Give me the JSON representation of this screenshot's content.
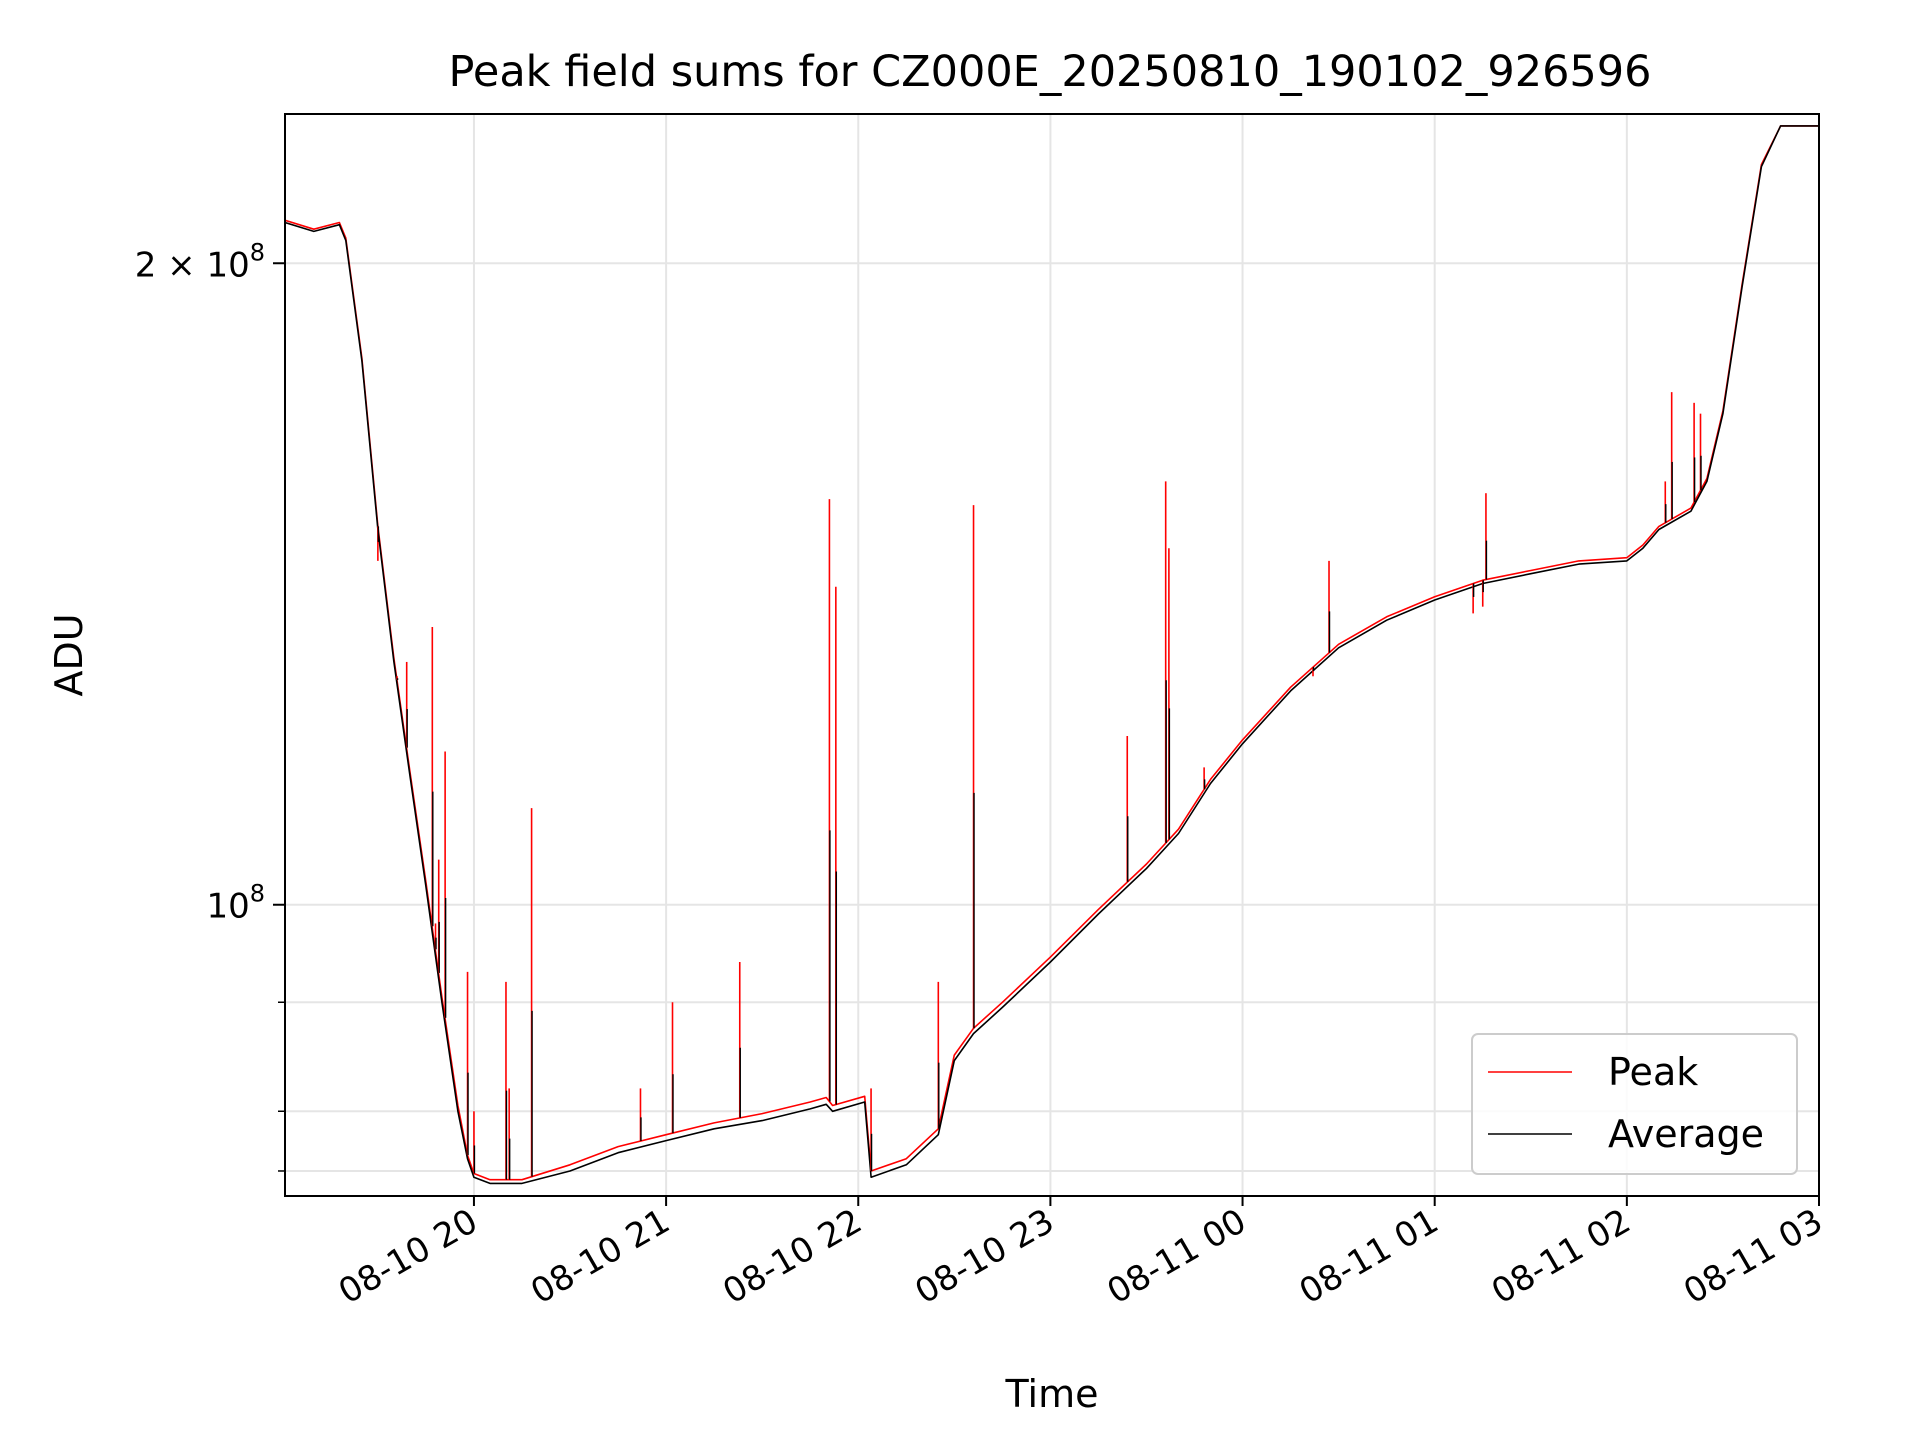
{
  "chart_data": {
    "type": "line",
    "title": "Peak field sums for CZ000E_20250810_190102_926596",
    "xlabel": "Time",
    "ylabel": "ADU",
    "y_scale": "log",
    "xlim": [
      "2025-08-10 19:01",
      "2025-08-11 03:00"
    ],
    "ylim": [
      73000000,
      235000000
    ],
    "x_ticks": [
      "08-10 20",
      "08-10 21",
      "08-10 22",
      "08-10 23",
      "08-11 00",
      "08-11 01",
      "08-11 02",
      "08-11 03"
    ],
    "x_tick_times": [
      "2025-08-10 20:00",
      "2025-08-10 21:00",
      "2025-08-10 22:00",
      "2025-08-10 23:00",
      "2025-08-11 00:00",
      "2025-08-11 01:00",
      "2025-08-11 02:00",
      "2025-08-11 03:00"
    ],
    "y_ticks_major": [
      {
        "value": 100000000,
        "base": "10",
        "exp": "8",
        "coef": ""
      },
      {
        "value": 200000000,
        "base": "10",
        "exp": "8",
        "coef": "2"
      }
    ],
    "y_ticks_minor": [
      75000000,
      80000000,
      90000000
    ],
    "grid": true,
    "legend": "lower-right",
    "colors": {
      "peak": "#ff0000",
      "average": "#000000",
      "grid": "#e5e5e5"
    },
    "series": [
      {
        "name": "Average",
        "color": "#000000",
        "points": [
          [
            "2025-08-10 19:01",
            209000000
          ],
          [
            "2025-08-10 19:10",
            207000000
          ],
          [
            "2025-08-10 19:18",
            208500000
          ],
          [
            "2025-08-10 19:20",
            205000000
          ],
          [
            "2025-08-10 19:25",
            180000000
          ],
          [
            "2025-08-10 19:30",
            150000000
          ],
          [
            "2025-08-10 19:35",
            130000000
          ],
          [
            "2025-08-10 19:40",
            115000000
          ],
          [
            "2025-08-10 19:45",
            102000000
          ],
          [
            "2025-08-10 19:50",
            90000000
          ],
          [
            "2025-08-10 19:55",
            80000000
          ],
          [
            "2025-08-10 19:58",
            76000000
          ],
          [
            "2025-08-10 20:00",
            74500000
          ],
          [
            "2025-08-10 20:05",
            74000000
          ],
          [
            "2025-08-10 20:15",
            74000000
          ],
          [
            "2025-08-10 20:30",
            75000000
          ],
          [
            "2025-08-10 20:45",
            76500000
          ],
          [
            "2025-08-10 21:00",
            77500000
          ],
          [
            "2025-08-10 21:15",
            78500000
          ],
          [
            "2025-08-10 21:30",
            79200000
          ],
          [
            "2025-08-10 21:45",
            80200000
          ],
          [
            "2025-08-10 21:50",
            80600000
          ],
          [
            "2025-08-10 21:52",
            80000000
          ],
          [
            "2025-08-10 22:02",
            80800000
          ],
          [
            "2025-08-10 22:04",
            74500000
          ],
          [
            "2025-08-10 22:15",
            75500000
          ],
          [
            "2025-08-10 22:25",
            78000000
          ],
          [
            "2025-08-10 22:30",
            84500000
          ],
          [
            "2025-08-10 22:36",
            87000000
          ],
          [
            "2025-08-10 22:45",
            89500000
          ],
          [
            "2025-08-10 23:00",
            94000000
          ],
          [
            "2025-08-10 23:15",
            99000000
          ],
          [
            "2025-08-10 23:30",
            104000000
          ],
          [
            "2025-08-10 23:40",
            108000000
          ],
          [
            "2025-08-10 23:50",
            114000000
          ],
          [
            "2025-08-11 00:00",
            119000000
          ],
          [
            "2025-08-11 00:15",
            126000000
          ],
          [
            "2025-08-11 00:30",
            132000000
          ],
          [
            "2025-08-11 00:45",
            136000000
          ],
          [
            "2025-08-11 01:00",
            139000000
          ],
          [
            "2025-08-11 01:15",
            141500000
          ],
          [
            "2025-08-11 01:30",
            143000000
          ],
          [
            "2025-08-11 01:45",
            144500000
          ],
          [
            "2025-08-11 02:00",
            145000000
          ],
          [
            "2025-08-11 02:05",
            147000000
          ],
          [
            "2025-08-11 02:10",
            150000000
          ],
          [
            "2025-08-11 02:20",
            153000000
          ],
          [
            "2025-08-11 02:25",
            158000000
          ],
          [
            "2025-08-11 02:30",
            170000000
          ],
          [
            "2025-08-11 02:36",
            195000000
          ],
          [
            "2025-08-11 02:42",
            222000000
          ],
          [
            "2025-08-11 02:48",
            232000000
          ],
          [
            "2025-08-11 03:00",
            232000000
          ]
        ],
        "spikes": []
      },
      {
        "name": "Peak",
        "color": "#ff0000",
        "points": [
          [
            "2025-08-10 19:01",
            209500000
          ],
          [
            "2025-08-10 19:10",
            207500000
          ],
          [
            "2025-08-10 19:18",
            209000000
          ],
          [
            "2025-08-10 19:20",
            205500000
          ],
          [
            "2025-08-10 19:25",
            180500000
          ],
          [
            "2025-08-10 19:30",
            150500000
          ],
          [
            "2025-08-10 19:35",
            130500000
          ],
          [
            "2025-08-10 19:40",
            115500000
          ],
          [
            "2025-08-10 19:45",
            102500000
          ],
          [
            "2025-08-10 19:50",
            90500000
          ],
          [
            "2025-08-10 19:55",
            80500000
          ],
          [
            "2025-08-10 19:58",
            76300000
          ],
          [
            "2025-08-10 20:00",
            74800000
          ],
          [
            "2025-08-10 20:05",
            74300000
          ],
          [
            "2025-08-10 20:15",
            74300000
          ],
          [
            "2025-08-10 20:30",
            75500000
          ],
          [
            "2025-08-10 20:45",
            77000000
          ],
          [
            "2025-08-10 21:00",
            78000000
          ],
          [
            "2025-08-10 21:15",
            79000000
          ],
          [
            "2025-08-10 21:30",
            79800000
          ],
          [
            "2025-08-10 21:45",
            80800000
          ],
          [
            "2025-08-10 21:50",
            81200000
          ],
          [
            "2025-08-10 21:52",
            80500000
          ],
          [
            "2025-08-10 22:02",
            81300000
          ],
          [
            "2025-08-10 22:04",
            75000000
          ],
          [
            "2025-08-10 22:15",
            76000000
          ],
          [
            "2025-08-10 22:25",
            78500000
          ],
          [
            "2025-08-10 22:30",
            85000000
          ],
          [
            "2025-08-10 22:36",
            87500000
          ],
          [
            "2025-08-10 22:45",
            90000000
          ],
          [
            "2025-08-10 23:00",
            94500000
          ],
          [
            "2025-08-10 23:15",
            99500000
          ],
          [
            "2025-08-10 23:30",
            104500000
          ],
          [
            "2025-08-10 23:40",
            108500000
          ],
          [
            "2025-08-10 23:50",
            114500000
          ],
          [
            "2025-08-11 00:00",
            119500000
          ],
          [
            "2025-08-11 00:15",
            126500000
          ],
          [
            "2025-08-11 00:30",
            132500000
          ],
          [
            "2025-08-11 00:45",
            136500000
          ],
          [
            "2025-08-11 01:00",
            139500000
          ],
          [
            "2025-08-11 01:15",
            142000000
          ],
          [
            "2025-08-11 01:30",
            143500000
          ],
          [
            "2025-08-11 01:45",
            145000000
          ],
          [
            "2025-08-11 02:00",
            145500000
          ],
          [
            "2025-08-11 02:05",
            147500000
          ],
          [
            "2025-08-11 02:10",
            150500000
          ],
          [
            "2025-08-11 02:20",
            153500000
          ],
          [
            "2025-08-11 02:25",
            158500000
          ],
          [
            "2025-08-11 02:30",
            170500000
          ],
          [
            "2025-08-11 02:36",
            195500000
          ],
          [
            "2025-08-11 02:42",
            222500000
          ],
          [
            "2025-08-11 02:48",
            232000000
          ],
          [
            "2025-08-11 03:00",
            232000000
          ]
        ],
        "spikes": [
          [
            "2025-08-10 19:30",
            145000000
          ],
          [
            "2025-08-10 19:36",
            128000000
          ],
          [
            "2025-08-10 19:39",
            130000000
          ],
          [
            "2025-08-10 19:47",
            135000000
          ],
          [
            "2025-08-10 19:48",
            98000000
          ],
          [
            "2025-08-10 19:49",
            105000000
          ],
          [
            "2025-08-10 19:51",
            118000000
          ],
          [
            "2025-08-10 19:58",
            93000000
          ],
          [
            "2025-08-10 20:00",
            80000000
          ],
          [
            "2025-08-10 20:10",
            92000000
          ],
          [
            "2025-08-10 20:11",
            82000000
          ],
          [
            "2025-08-10 20:18",
            111000000
          ],
          [
            "2025-08-10 20:52",
            82000000
          ],
          [
            "2025-08-10 21:02",
            90000000
          ],
          [
            "2025-08-10 21:23",
            94000000
          ],
          [
            "2025-08-10 21:51",
            155000000
          ],
          [
            "2025-08-10 21:53",
            141000000
          ],
          [
            "2025-08-10 22:04",
            82000000
          ],
          [
            "2025-08-10 22:25",
            92000000
          ],
          [
            "2025-08-10 22:36",
            154000000
          ],
          [
            "2025-08-10 23:24",
            120000000
          ],
          [
            "2025-08-10 23:36",
            158000000
          ],
          [
            "2025-08-10 23:37",
            147000000
          ],
          [
            "2025-08-10 23:48",
            116000000
          ],
          [
            "2025-08-11 00:22",
            128000000
          ],
          [
            "2025-08-11 00:27",
            145000000
          ],
          [
            "2025-08-11 01:12",
            137000000
          ],
          [
            "2025-08-11 01:15",
            138000000
          ],
          [
            "2025-08-11 01:16",
            156000000
          ],
          [
            "2025-08-11 02:12",
            158000000
          ],
          [
            "2025-08-11 02:14",
            174000000
          ],
          [
            "2025-08-11 02:21",
            172000000
          ],
          [
            "2025-08-11 02:23",
            170000000
          ]
        ]
      }
    ]
  }
}
